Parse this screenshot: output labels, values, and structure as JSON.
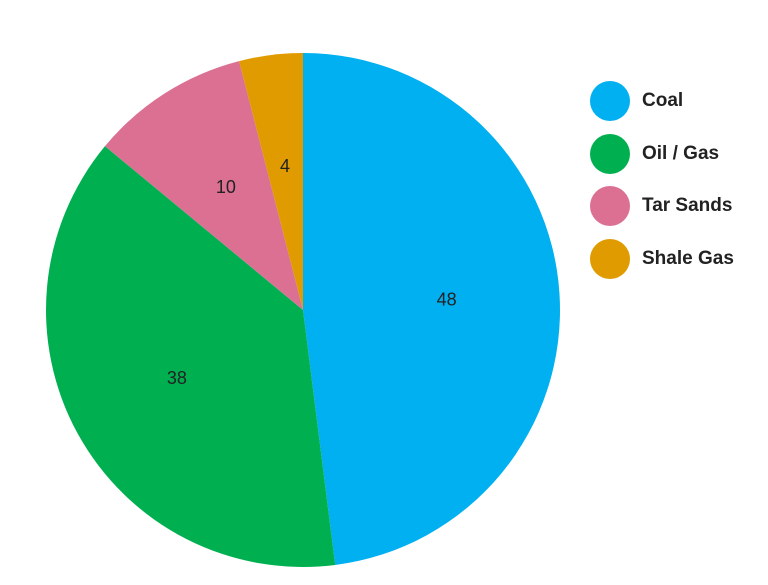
{
  "chart_data": {
    "type": "pie",
    "categories": [
      "Coal",
      "Oil / Gas",
      "Tar Sands",
      "Shale Gas"
    ],
    "values": [
      48,
      38,
      10,
      4
    ],
    "colors": [
      "#00b0f0",
      "#00b050",
      "#db7093",
      "#e09b00"
    ],
    "data_labels": [
      "48",
      "38",
      "10",
      "4"
    ],
    "start": "12 o'clock",
    "direction": "clockwise",
    "legend_position": "right"
  }
}
